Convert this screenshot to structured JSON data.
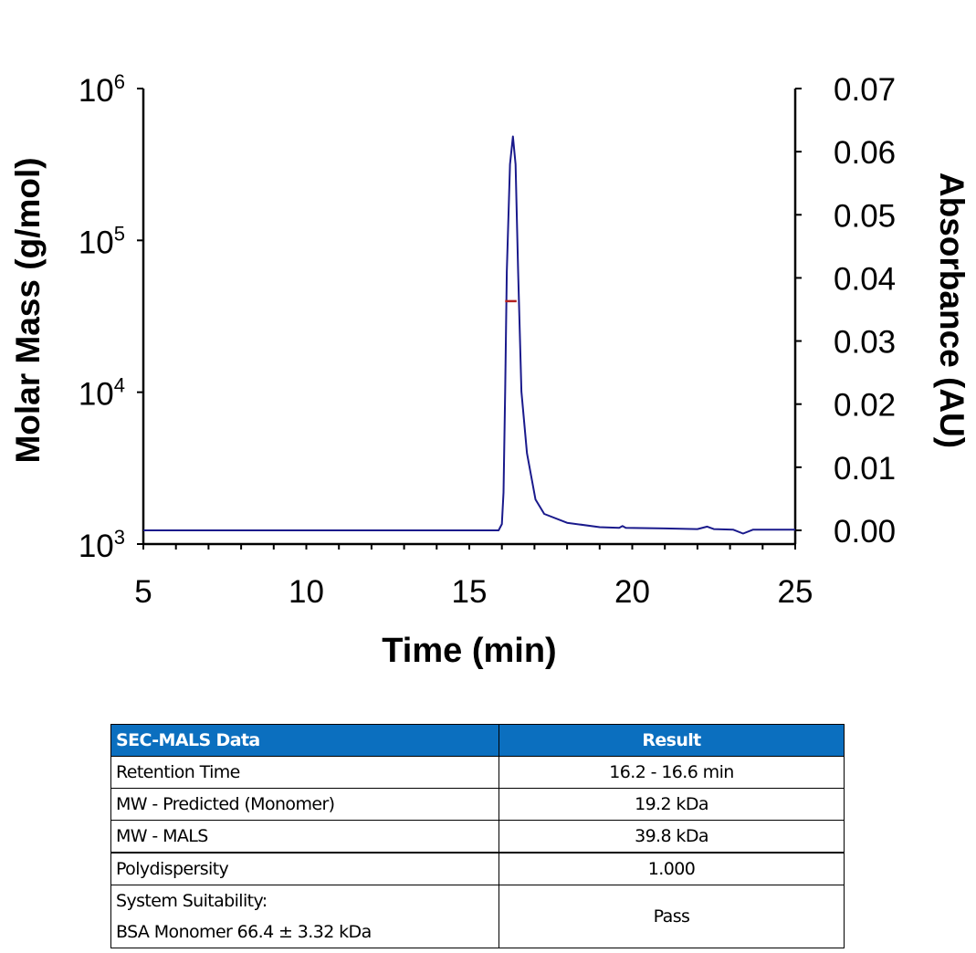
{
  "chart_data": {
    "type": "line",
    "xlabel": "Time (min)",
    "ylabel_left": "Molar Mass (g/mol)",
    "ylabel_right": "Absorbance (AU)",
    "xlim": [
      5,
      25
    ],
    "x_ticks": [
      "5",
      "10",
      "15",
      "20",
      "25"
    ],
    "ylim_left": [
      1000,
      1000000
    ],
    "y_left_scale": "log",
    "y_left_ticks": [
      {
        "base": "10",
        "exp": "3"
      },
      {
        "base": "10",
        "exp": "4"
      },
      {
        "base": "10",
        "exp": "5"
      },
      {
        "base": "10",
        "exp": "6"
      }
    ],
    "ylim_right": [
      0,
      0.07
    ],
    "y_right_ticks": [
      "0.00",
      "0.01",
      "0.02",
      "0.03",
      "0.04",
      "0.05",
      "0.06",
      "0.07"
    ],
    "grid": false,
    "series": [
      {
        "axis": "right",
        "color": "#1a1a8c",
        "x": [
          5,
          15.9,
          16.0,
          16.05,
          16.1,
          16.15,
          16.25,
          16.34,
          16.42,
          16.5,
          16.6,
          16.77,
          17.03,
          17.3,
          18.0,
          19.0,
          19.6,
          19.7,
          19.8,
          21.0,
          22.0,
          22.3,
          22.5,
          23.1,
          23.4,
          23.7,
          25
        ],
        "y": [
          0,
          0,
          0.001,
          0.006,
          0.022,
          0.041,
          0.058,
          0.0624,
          0.058,
          0.041,
          0.022,
          0.0122,
          0.0049,
          0.0026,
          0.0012,
          0.0005,
          0.0004,
          0.0007,
          0.0004,
          0.0003,
          0.0002,
          0.0006,
          0.0002,
          0.0001,
          -0.0005,
          0.0001,
          0.0001
        ]
      },
      {
        "axis": "left",
        "color": "#b22222",
        "x": [
          16.1,
          16.3,
          16.45
        ],
        "y": [
          39800,
          39800,
          39800
        ]
      }
    ]
  },
  "table": {
    "headers": [
      "SEC-MALS Data",
      "Result"
    ],
    "header_color": "#0b6fbf",
    "rows": [
      {
        "label": "Retention Time",
        "value": "16.2 - 16.6 min"
      },
      {
        "label": "MW - Predicted (Monomer)",
        "value": "19.2 kDa"
      },
      {
        "label": "MW - MALS",
        "value": "39.8 kDa"
      },
      {
        "label": "Polydispersity",
        "value": "1.000"
      }
    ],
    "last_row": {
      "label_line1": "System Suitability:",
      "label_line2": "BSA Monomer 66.4 ± 3.32 kDa",
      "value": "Pass"
    }
  }
}
